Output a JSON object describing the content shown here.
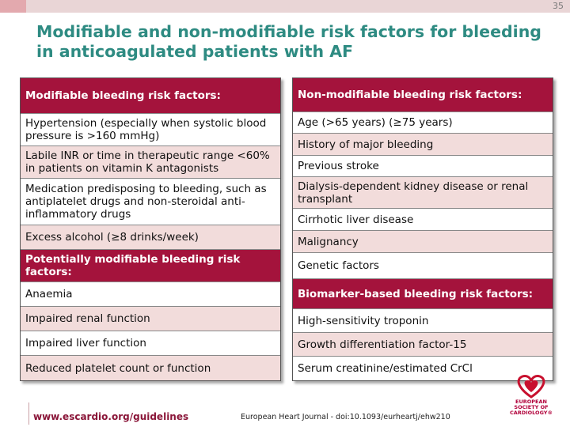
{
  "slide": {
    "number": "35",
    "title": "Modifiable and non-modifiable risk factors for bleeding in anticoagulated patients with AF"
  },
  "left_table": {
    "rows": [
      {
        "text": "Modifiable bleeding risk factors:",
        "style": "header"
      },
      {
        "text": "Hypertension (especially when systolic blood pressure is >160 mmHg)",
        "style": "white"
      },
      {
        "text": "Labile INR or time in therapeutic range <60% in patients on vitamin K antagonists",
        "style": "pink"
      },
      {
        "text": "Medication predisposing to bleeding, such as antiplatelet drugs and non-steroidal anti-inflammatory drugs",
        "style": "white"
      },
      {
        "text": "Excess alcohol (≥8 drinks/week)",
        "style": "pink"
      },
      {
        "text": "Potentially modifiable bleeding risk factors:",
        "style": "header"
      },
      {
        "text": "Anaemia",
        "style": "white"
      },
      {
        "text": "Impaired renal function",
        "style": "pink"
      },
      {
        "text": "Impaired liver function",
        "style": "white"
      },
      {
        "text": "Reduced platelet count or function",
        "style": "pink"
      }
    ]
  },
  "right_table": {
    "rows": [
      {
        "text": "Non-modifiable bleeding risk factors:",
        "style": "header"
      },
      {
        "text": "Age (>65 years) (≥75 years)",
        "style": "white"
      },
      {
        "text": "History of major bleeding",
        "style": "pink"
      },
      {
        "text": "Previous stroke",
        "style": "white"
      },
      {
        "text": "Dialysis-dependent kidney disease or renal transplant",
        "style": "pink"
      },
      {
        "text": "Cirrhotic liver disease",
        "style": "white"
      },
      {
        "text": "Malignancy",
        "style": "pink"
      },
      {
        "text": "Genetic factors",
        "style": "white"
      },
      {
        "text": "Biomarker-based bleeding risk factors:",
        "style": "header"
      },
      {
        "text": "High-sensitivity troponin",
        "style": "white"
      },
      {
        "text": "Growth differentiation factor-15",
        "style": "pink"
      },
      {
        "text": "Serum creatinine/estimated CrCl",
        "style": "white"
      }
    ]
  },
  "footer": {
    "url": "www.escardio.org/guidelines",
    "reference": "European Heart Journal - doi:10.1093/eurheartj/ehw210"
  },
  "logo": {
    "line1": "EUROPEAN",
    "line2": "SOCIETY OF",
    "line3": "CARDIOLOGY®",
    "icon": "heart-logo-icon"
  },
  "colors": {
    "header_bg": "#a4133c",
    "pink_row": "#f2dcdb",
    "title": "#2e8b82",
    "footer_url": "#8a1538"
  }
}
